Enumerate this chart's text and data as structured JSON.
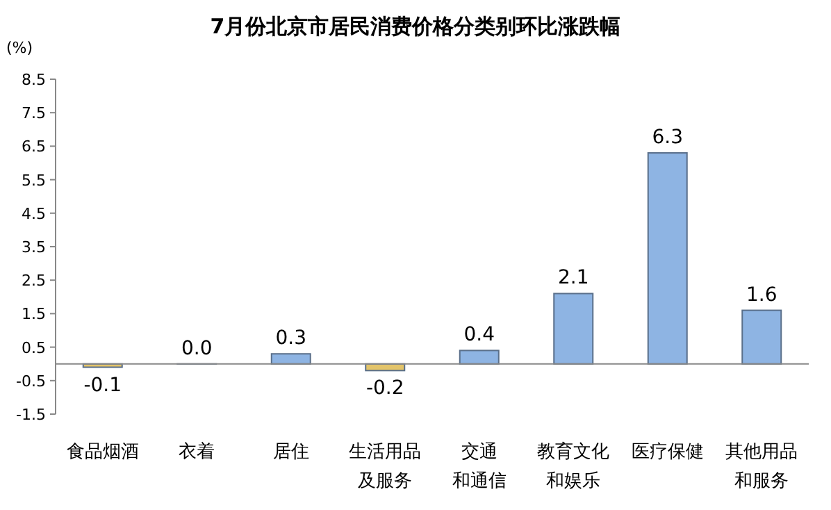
{
  "chart_data": {
    "type": "bar",
    "title": "7月份北京市居民消费价格分类别环比涨跌幅",
    "ylabel": "(%)",
    "categories": [
      "食品烟酒",
      "衣着",
      "居住",
      "生活用品及服务",
      "交通和通信",
      "教育文化和娱乐",
      "医疗保健",
      "其他用品和服务"
    ],
    "values": [
      -0.1,
      0,
      0.3,
      -0.2,
      0.4,
      2.1,
      6.3,
      1.6
    ],
    "value_labels": [
      "-0.1",
      "0.0",
      "0.3",
      "-0.2",
      "0.4",
      "2.1",
      "6.3",
      "1.6"
    ],
    "colors": [
      "#e3c46a",
      "#8eb4e3",
      "#8eb4e3",
      "#e3c46a",
      "#8eb4e3",
      "#8eb4e3",
      "#8eb4e3",
      "#8eb4e3"
    ],
    "ylim": [
      -1.5,
      8.5
    ],
    "yticks": [
      -1.5,
      -0.5,
      0.5,
      1.5,
      2.5,
      3.5,
      4.5,
      5.5,
      6.5,
      7.5,
      8.5
    ],
    "grid": false
  }
}
